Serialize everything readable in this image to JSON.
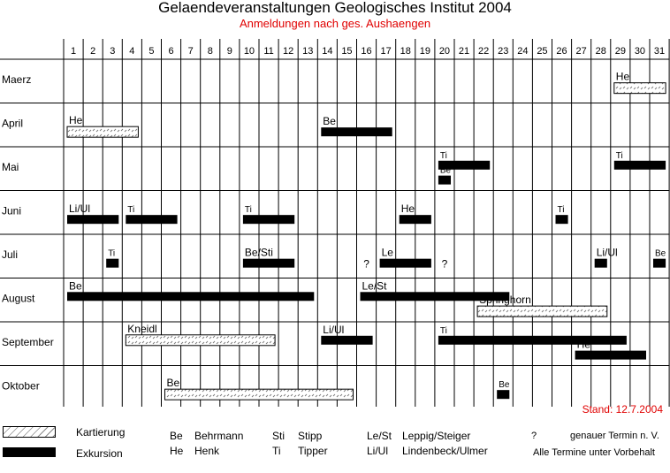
{
  "title": "Gelaendeveranstaltungen Geologisches Institut 2004",
  "subtitle": "Anmeldungen nach ges. Aushaengen",
  "stand": "Stand: 12.7.2004",
  "chart_data": {
    "type": "gantt",
    "days": [
      "1",
      "2",
      "3",
      "4",
      "5",
      "6",
      "7",
      "8",
      "9",
      "10",
      "11",
      "12",
      "13",
      "14",
      "15",
      "16",
      "17",
      "18",
      "19",
      "20",
      "21",
      "22",
      "23",
      "24",
      "25",
      "26",
      "27",
      "28",
      "29",
      "30",
      "31"
    ],
    "months": [
      "Maerz",
      "April",
      "Mai",
      "Juni",
      "Juli",
      "August",
      "September",
      "Oktober"
    ],
    "bars": [
      {
        "month": 0,
        "start": 29,
        "end": 31,
        "kind": "Kartierung",
        "label": "He"
      },
      {
        "month": 1,
        "start": 1,
        "end": 4,
        "kind": "Kartierung",
        "label": "He"
      },
      {
        "month": 1,
        "start": 14,
        "end": 17,
        "kind": "Exkursion",
        "label": "Be"
      },
      {
        "month": 2,
        "start": 20,
        "end": 22,
        "kind": "Exkursion",
        "label": "Ti"
      },
      {
        "month": 2,
        "start": 20,
        "end": 20,
        "kind": "Exkursion",
        "label": "Be"
      },
      {
        "month": 2,
        "start": 29,
        "end": 31,
        "kind": "Exkursion",
        "label": "Ti"
      },
      {
        "month": 3,
        "start": 1,
        "end": 3,
        "kind": "Exkursion",
        "label": "Li/Ul"
      },
      {
        "month": 3,
        "start": 4,
        "end": 6,
        "kind": "Exkursion",
        "label": "Ti"
      },
      {
        "month": 3,
        "start": 10,
        "end": 12,
        "kind": "Exkursion",
        "label": "Ti"
      },
      {
        "month": 3,
        "start": 18,
        "end": 19,
        "kind": "Exkursion",
        "label": "He"
      },
      {
        "month": 3,
        "start": 26,
        "end": 26,
        "kind": "Exkursion",
        "label": "Ti"
      },
      {
        "month": 4,
        "start": 3,
        "end": 3,
        "kind": "Exkursion",
        "label": "Ti"
      },
      {
        "month": 4,
        "start": 10,
        "end": 12,
        "kind": "Exkursion",
        "label": "Be/Sti"
      },
      {
        "month": 4,
        "start": 17,
        "end": 19,
        "kind": "Exkursion",
        "label": "Le"
      },
      {
        "month": 4,
        "start": 28,
        "end": 28,
        "kind": "Exkursion",
        "label": "Li/Ul"
      },
      {
        "month": 4,
        "start": 31,
        "end": 31,
        "kind": "Exkursion",
        "label": "Be"
      },
      {
        "month": 5,
        "start": 1,
        "end": 13,
        "kind": "Exkursion",
        "label": "Be"
      },
      {
        "month": 5,
        "start": 16,
        "end": 23,
        "kind": "Exkursion",
        "label": "Le/St"
      },
      {
        "month": 5,
        "start": 22,
        "end": 28,
        "kind": "Kartierung",
        "label": "Springhorn"
      },
      {
        "month": 6,
        "start": 4,
        "end": 11,
        "kind": "Kartierung",
        "label": "Kneidl"
      },
      {
        "month": 6,
        "start": 14,
        "end": 16,
        "kind": "Exkursion",
        "label": "Li/Ul"
      },
      {
        "month": 6,
        "start": 20,
        "end": 29,
        "kind": "Exkursion",
        "label": "Ti"
      },
      {
        "month": 6,
        "start": 27,
        "end": 30,
        "kind": "Exkursion",
        "label": "He"
      },
      {
        "month": 7,
        "start": 6,
        "end": 15,
        "kind": "Kartierung",
        "label": "Be"
      },
      {
        "month": 7,
        "start": 23,
        "end": 23,
        "kind": "Exkursion",
        "label": "Be"
      }
    ],
    "uncertain_marks": [
      {
        "month": 4,
        "day": 16,
        "text": "?"
      },
      {
        "month": 4,
        "day": 20,
        "text": "?"
      }
    ]
  },
  "legend": {
    "kartierung": "Kartierung",
    "exkursion": "Exkursion",
    "abbreviations": [
      {
        "code": "Be",
        "name": "Behrmann"
      },
      {
        "code": "He",
        "name": "Henk"
      },
      {
        "code": "Sti",
        "name": "Stipp"
      },
      {
        "code": "Ti",
        "name": "Tipper"
      },
      {
        "code": "Le/St",
        "name": "Leppig/Steiger"
      },
      {
        "code": "Li/Ul",
        "name": "Lindenbeck/Ulmer"
      }
    ],
    "question_symbol": "?",
    "question_text": "genauer Termin n. V.",
    "vorbehalt": "Alle Termine unter Vorbehalt"
  }
}
